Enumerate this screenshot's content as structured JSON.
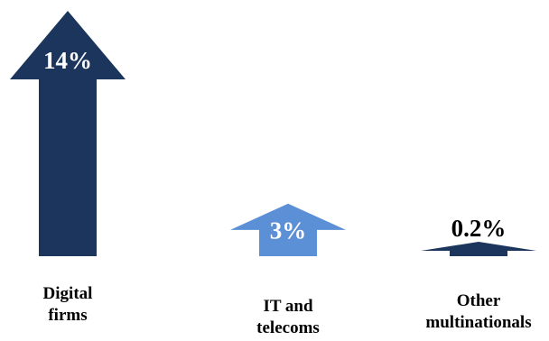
{
  "chart_data": {
    "type": "bar",
    "title": "",
    "xlabel": "",
    "ylabel": "",
    "categories": [
      [
        "Digital",
        "firms"
      ],
      [
        "IT and",
        "telecoms"
      ],
      [
        "Other",
        "multinationals"
      ]
    ],
    "values": [
      14,
      3,
      0.2
    ],
    "value_labels": [
      "14%",
      "3%",
      "0.2%"
    ],
    "unit": "%",
    "ylim": [
      0,
      14
    ],
    "grid": false,
    "legend": "none",
    "colors": [
      "#1b355c",
      "#5b8fd6",
      "#1b355c"
    ],
    "value_label_colors": [
      "#ffffff",
      "#ffffff",
      "#000000"
    ],
    "marker": "up-arrow"
  }
}
